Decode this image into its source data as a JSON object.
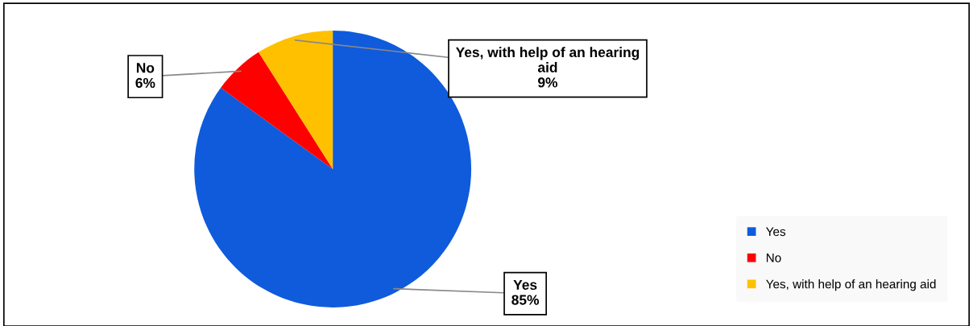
{
  "chart_data": {
    "type": "pie",
    "categories": [
      "Yes",
      "No",
      "Yes, with help of an hearing aid"
    ],
    "values": [
      85,
      6,
      9
    ],
    "colors": [
      "#0f5bdc",
      "#ff0000",
      "#ffc000"
    ],
    "value_labels": [
      "85%",
      "6%",
      "9%"
    ],
    "legend": "bottom right"
  }
}
